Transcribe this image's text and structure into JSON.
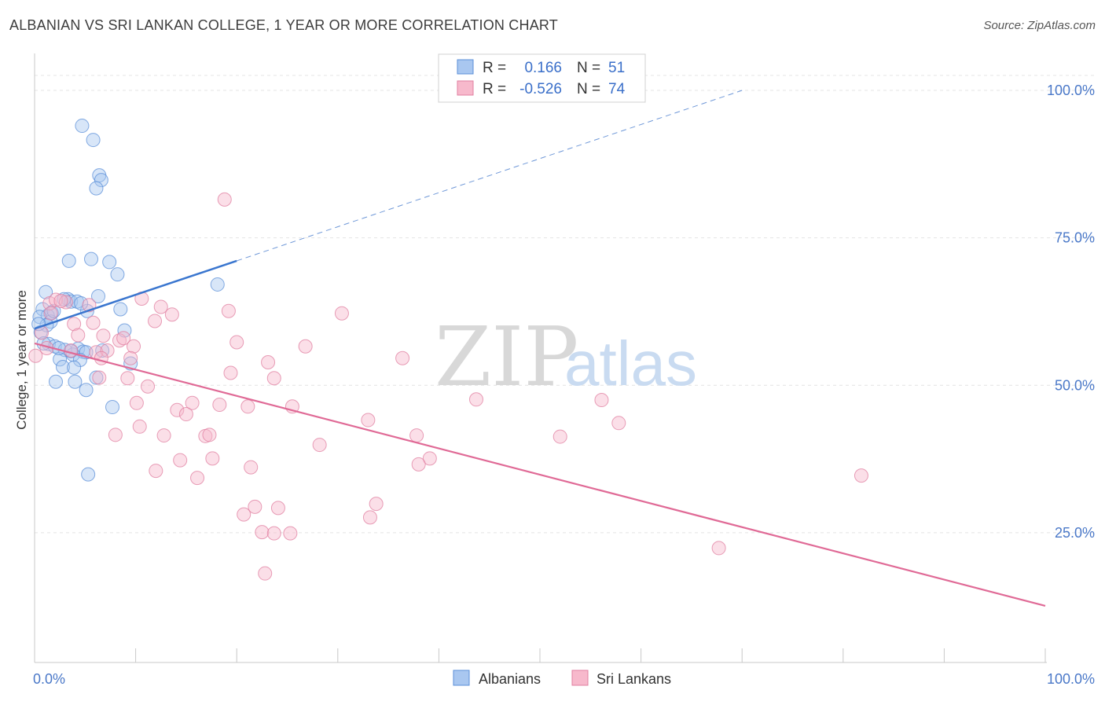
{
  "title": "ALBANIAN VS SRI LANKAN COLLEGE, 1 YEAR OR MORE CORRELATION CHART",
  "source": "Source: ZipAtlas.com",
  "watermark": {
    "zip": "ZIP",
    "atlas": "atlas"
  },
  "legend": {
    "r_label": "R =",
    "n_label": "N =",
    "rows": [
      {
        "r": "0.166",
        "n": "51",
        "color": "#a9c7f0",
        "stroke": "#5b8fd8"
      },
      {
        "r": "-0.526",
        "n": "74",
        "color": "#f7b9cc",
        "stroke": "#e07fa0"
      }
    ]
  },
  "bottom_legend": [
    "Albanians",
    "Sri Lankans"
  ],
  "chart_data": {
    "type": "scatter",
    "title": "ALBANIAN VS SRI LANKAN COLLEGE, 1 YEAR OR MORE CORRELATION CHART",
    "xlabel": "",
    "ylabel": "College, 1 year or more",
    "xlim": [
      0,
      100
    ],
    "ylim": [
      3,
      106
    ],
    "x_tick_labels": [
      "0.0%",
      "100.0%"
    ],
    "y_ticks": [
      25,
      50,
      75,
      100
    ],
    "y_tick_labels": [
      "25.0%",
      "50.0%",
      "75.0%",
      "100.0%"
    ],
    "series": [
      {
        "name": "Albanians",
        "color": "#a9c7f0",
        "stroke": "#5b8fd8",
        "trend": {
          "x0": 0,
          "y0": 59.6,
          "x1": 20,
          "y1": 71.1,
          "dash_to_x": 70,
          "dash_to_y": 100
        },
        "points": [
          [
            4.7,
            94.0
          ],
          [
            5.8,
            91.6
          ],
          [
            6.4,
            85.6
          ],
          [
            6.6,
            84.8
          ],
          [
            6.1,
            83.4
          ],
          [
            3.4,
            71.1
          ],
          [
            5.6,
            71.4
          ],
          [
            7.4,
            70.9
          ],
          [
            8.2,
            68.8
          ],
          [
            18.1,
            67.1
          ],
          [
            1.1,
            65.8
          ],
          [
            3.3,
            64.6
          ],
          [
            3.6,
            64.2
          ],
          [
            6.3,
            65.1
          ],
          [
            4.2,
            64.2
          ],
          [
            8.5,
            62.9
          ],
          [
            0.8,
            62.9
          ],
          [
            1.7,
            62.3
          ],
          [
            1.3,
            61.8
          ],
          [
            0.5,
            61.6
          ],
          [
            5.2,
            62.6
          ],
          [
            1.6,
            60.8
          ],
          [
            1.2,
            60.2
          ],
          [
            0.6,
            59.0
          ],
          [
            8.9,
            59.3
          ],
          [
            1.4,
            57.0
          ],
          [
            2.0,
            56.6
          ],
          [
            3.0,
            56.0
          ],
          [
            4.3,
            56.2
          ],
          [
            4.8,
            55.7
          ],
          [
            5.1,
            55.6
          ],
          [
            3.8,
            55.2
          ],
          [
            3.6,
            55.8
          ],
          [
            2.5,
            54.4
          ],
          [
            4.5,
            54.3
          ],
          [
            9.5,
            53.7
          ],
          [
            2.8,
            53.1
          ],
          [
            3.9,
            53.0
          ],
          [
            6.1,
            51.3
          ],
          [
            2.1,
            50.6
          ],
          [
            4.0,
            50.6
          ],
          [
            5.1,
            49.2
          ],
          [
            7.7,
            46.3
          ],
          [
            5.3,
            34.9
          ],
          [
            0.4,
            60.4
          ],
          [
            2.9,
            64.6
          ],
          [
            1.9,
            62.6
          ],
          [
            4.6,
            63.9
          ],
          [
            2.4,
            56.3
          ],
          [
            0.9,
            57.1
          ],
          [
            6.7,
            55.9
          ]
        ]
      },
      {
        "name": "Sri Lankans",
        "color": "#f7b9cc",
        "stroke": "#e07fa0",
        "trend": {
          "x0": 0,
          "y0": 57.1,
          "x1": 100,
          "y1": 12.6
        },
        "points": [
          [
            18.8,
            81.5
          ],
          [
            1.5,
            63.9
          ],
          [
            2.1,
            64.5
          ],
          [
            3.1,
            64.1
          ],
          [
            5.4,
            63.6
          ],
          [
            10.6,
            64.7
          ],
          [
            12.5,
            63.3
          ],
          [
            13.6,
            62.0
          ],
          [
            19.2,
            62.6
          ],
          [
            30.4,
            62.2
          ],
          [
            1.6,
            62.2
          ],
          [
            3.9,
            60.4
          ],
          [
            11.9,
            60.9
          ],
          [
            5.8,
            60.6
          ],
          [
            4.3,
            58.5
          ],
          [
            6.8,
            58.4
          ],
          [
            8.4,
            57.6
          ],
          [
            8.8,
            58.0
          ],
          [
            20.0,
            57.3
          ],
          [
            26.8,
            56.6
          ],
          [
            9.8,
            56.6
          ],
          [
            1.2,
            56.3
          ],
          [
            3.6,
            55.9
          ],
          [
            6.1,
            55.6
          ],
          [
            7.2,
            55.9
          ],
          [
            9.5,
            54.6
          ],
          [
            6.6,
            54.6
          ],
          [
            23.1,
            53.9
          ],
          [
            36.4,
            54.6
          ],
          [
            19.4,
            52.1
          ],
          [
            23.7,
            51.2
          ],
          [
            9.2,
            51.2
          ],
          [
            6.4,
            51.3
          ],
          [
            11.2,
            49.8
          ],
          [
            0.1,
            55.0
          ],
          [
            43.7,
            47.6
          ],
          [
            56.1,
            47.5
          ],
          [
            10.1,
            47.0
          ],
          [
            15.6,
            47.0
          ],
          [
            18.3,
            46.7
          ],
          [
            21.1,
            46.4
          ],
          [
            25.5,
            46.4
          ],
          [
            14.1,
            45.8
          ],
          [
            15.0,
            45.1
          ],
          [
            33.0,
            44.1
          ],
          [
            10.4,
            43.0
          ],
          [
            57.8,
            43.6
          ],
          [
            8.0,
            41.6
          ],
          [
            12.8,
            41.5
          ],
          [
            16.9,
            41.4
          ],
          [
            17.3,
            41.6
          ],
          [
            37.8,
            41.5
          ],
          [
            52.0,
            41.3
          ],
          [
            28.2,
            39.9
          ],
          [
            14.4,
            37.3
          ],
          [
            17.6,
            37.6
          ],
          [
            39.1,
            37.6
          ],
          [
            38.0,
            36.6
          ],
          [
            21.4,
            36.1
          ],
          [
            12.0,
            35.5
          ],
          [
            16.1,
            34.3
          ],
          [
            81.8,
            34.7
          ],
          [
            33.8,
            29.9
          ],
          [
            21.8,
            29.4
          ],
          [
            24.1,
            29.2
          ],
          [
            20.7,
            28.1
          ],
          [
            33.2,
            27.6
          ],
          [
            22.5,
            25.1
          ],
          [
            23.7,
            24.9
          ],
          [
            25.3,
            24.9
          ],
          [
            67.7,
            22.4
          ],
          [
            22.8,
            18.1
          ],
          [
            2.6,
            64.3
          ],
          [
            0.7,
            58.9
          ]
        ]
      }
    ]
  }
}
